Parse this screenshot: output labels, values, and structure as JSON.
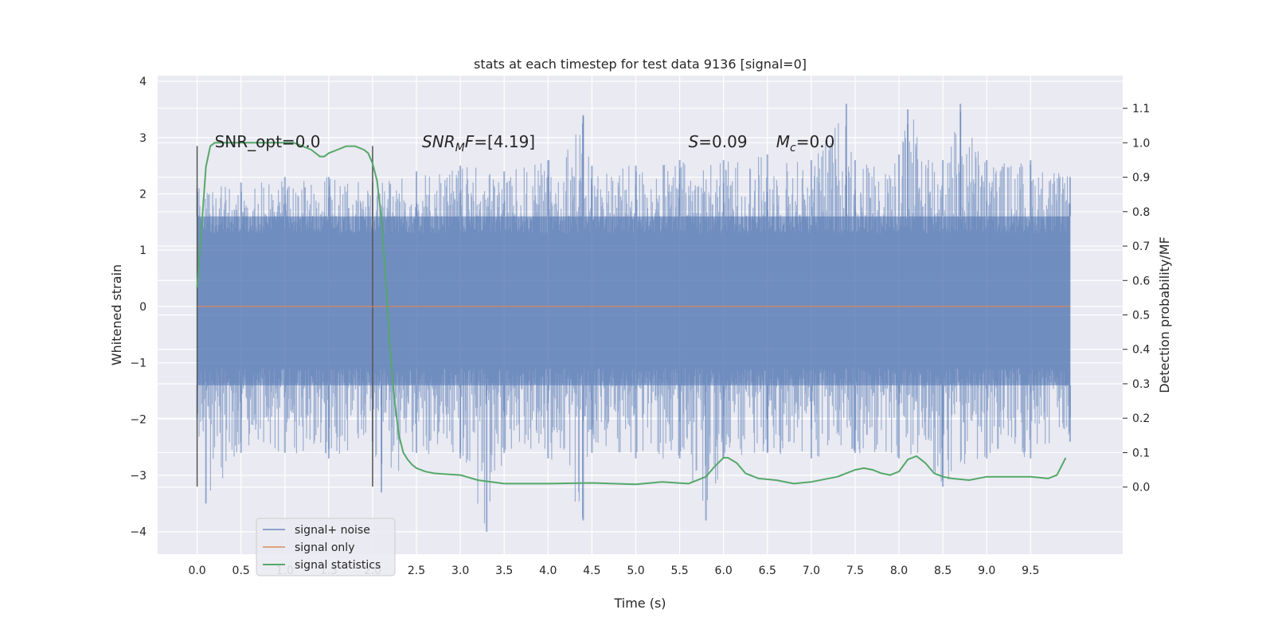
{
  "chart_data": {
    "type": "line",
    "title": "stats at each timestep for test data 9136 [signal=0]",
    "xlabel": "Time (s)",
    "ylabel": "Whitened strain",
    "y2label": "Detection probability/MF",
    "xlim": [
      -0.45,
      10.55
    ],
    "ylim": [
      -4.4,
      4.1
    ],
    "y2lim": [
      -0.195,
      1.195
    ],
    "x_ticks": [
      "0.0",
      "0.5",
      "1.0",
      "1.5",
      "2.0",
      "2.5",
      "3.0",
      "3.5",
      "4.0",
      "4.5",
      "5.0",
      "5.5",
      "6.0",
      "6.5",
      "7.0",
      "7.5",
      "8.0",
      "8.5",
      "9.0",
      "9.5"
    ],
    "y_ticks": [
      "4",
      "3",
      "2",
      "1",
      "0",
      "−1",
      "−2",
      "−3",
      "−4"
    ],
    "y2_ticks": [
      "1.1",
      "1.0",
      "0.9",
      "0.8",
      "0.7",
      "0.6",
      "0.5",
      "0.4",
      "0.3",
      "0.2",
      "0.1",
      "0.0"
    ],
    "grid": true,
    "legend_position": "lower-left",
    "background": "#eaeaf2",
    "series": [
      {
        "name": "signal+ noise",
        "color": "#4c72b0",
        "axis": "left",
        "x_range": [
          0.0,
          9.95
        ],
        "envelope_upper": [
          [
            0.0,
            2.1
          ],
          [
            0.5,
            2.2
          ],
          [
            1.0,
            2.3
          ],
          [
            1.5,
            2.3
          ],
          [
            2.0,
            2.2
          ],
          [
            2.5,
            2.4
          ],
          [
            3.0,
            2.5
          ],
          [
            3.5,
            2.4
          ],
          [
            4.0,
            2.6
          ],
          [
            4.4,
            3.4
          ],
          [
            4.5,
            2.5
          ],
          [
            5.0,
            2.5
          ],
          [
            5.5,
            2.6
          ],
          [
            6.0,
            2.6
          ],
          [
            6.5,
            2.7
          ],
          [
            7.0,
            2.6
          ],
          [
            7.4,
            3.6
          ],
          [
            7.5,
            2.6
          ],
          [
            8.0,
            2.7
          ],
          [
            8.1,
            3.5
          ],
          [
            8.5,
            2.6
          ],
          [
            8.7,
            3.6
          ],
          [
            9.0,
            2.6
          ],
          [
            9.5,
            2.6
          ],
          [
            9.95,
            2.3
          ]
        ],
        "envelope_lower": [
          [
            0.0,
            -2.0
          ],
          [
            0.1,
            -3.5
          ],
          [
            0.5,
            -2.6
          ],
          [
            1.0,
            -2.6
          ],
          [
            1.5,
            -2.7
          ],
          [
            2.0,
            -2.4
          ],
          [
            2.1,
            -3.3
          ],
          [
            2.5,
            -2.6
          ],
          [
            3.0,
            -2.7
          ],
          [
            3.3,
            -4.0
          ],
          [
            3.5,
            -2.6
          ],
          [
            4.0,
            -2.7
          ],
          [
            4.4,
            -3.8
          ],
          [
            4.5,
            -2.6
          ],
          [
            5.0,
            -2.7
          ],
          [
            5.5,
            -2.7
          ],
          [
            5.8,
            -3.8
          ],
          [
            6.0,
            -2.7
          ],
          [
            6.5,
            -2.6
          ],
          [
            7.0,
            -2.7
          ],
          [
            7.5,
            -2.6
          ],
          [
            8.0,
            -2.7
          ],
          [
            8.5,
            -3.2
          ],
          [
            9.0,
            -2.7
          ],
          [
            9.5,
            -2.7
          ],
          [
            9.95,
            -2.4
          ]
        ],
        "band_typical": [
          -1.4,
          1.6
        ]
      },
      {
        "name": "signal only",
        "color": "#dd8452",
        "axis": "left",
        "x": [
          0.0,
          9.95
        ],
        "values": [
          0,
          0
        ]
      },
      {
        "name": "signal statistics",
        "color": "#55a868",
        "axis": "right",
        "x": [
          0.0,
          0.05,
          0.1,
          0.15,
          0.2,
          0.3,
          0.5,
          0.8,
          1.0,
          1.1,
          1.2,
          1.3,
          1.4,
          1.45,
          1.5,
          1.6,
          1.7,
          1.8,
          1.9,
          1.95,
          2.0,
          2.05,
          2.1,
          2.15,
          2.2,
          2.25,
          2.3,
          2.35,
          2.4,
          2.45,
          2.5,
          2.6,
          2.7,
          2.8,
          3.0,
          3.2,
          3.5,
          4.0,
          4.5,
          5.0,
          5.3,
          5.6,
          5.8,
          5.9,
          6.0,
          6.05,
          6.15,
          6.25,
          6.4,
          6.6,
          6.8,
          7.0,
          7.3,
          7.5,
          7.6,
          7.7,
          7.8,
          7.9,
          8.0,
          8.1,
          8.2,
          8.3,
          8.4,
          8.5,
          8.6,
          8.8,
          9.0,
          9.2,
          9.5,
          9.7,
          9.8,
          9.9
        ],
        "values": [
          0.58,
          0.75,
          0.93,
          0.99,
          1.0,
          1.0,
          1.0,
          1.0,
          1.0,
          1.0,
          0.99,
          0.98,
          0.96,
          0.96,
          0.97,
          0.98,
          0.99,
          0.99,
          0.98,
          0.97,
          0.94,
          0.89,
          0.78,
          0.6,
          0.4,
          0.25,
          0.15,
          0.1,
          0.08,
          0.065,
          0.055,
          0.045,
          0.04,
          0.038,
          0.035,
          0.02,
          0.01,
          0.01,
          0.012,
          0.008,
          0.015,
          0.01,
          0.03,
          0.06,
          0.085,
          0.085,
          0.07,
          0.04,
          0.025,
          0.02,
          0.01,
          0.015,
          0.03,
          0.05,
          0.055,
          0.05,
          0.04,
          0.035,
          0.045,
          0.08,
          0.09,
          0.07,
          0.04,
          0.03,
          0.025,
          0.02,
          0.03,
          0.03,
          0.03,
          0.025,
          0.035,
          0.085
        ]
      }
    ],
    "vlines": [
      0.0,
      2.0
    ],
    "vline_color": "#555555",
    "annotations": [
      {
        "id": "snr_opt",
        "text": "SNR_opt=0.0",
        "x": 0.2,
        "y": 2.8
      },
      {
        "id": "snr_mf",
        "text_main": "SNR",
        "text_sub": "M",
        "text_rest": "F=[4.19]",
        "x": 2.6,
        "y": 2.8
      },
      {
        "id": "s_stat",
        "text_main": "S",
        "text_rest": "=0.09",
        "x": 5.6,
        "y": 2.8
      },
      {
        "id": "mc",
        "text_main": "M",
        "text_sub": "c",
        "text_rest": "=0.0",
        "x": 6.6,
        "y": 2.8
      }
    ],
    "legend": [
      {
        "label": "signal+ noise",
        "color": "#4c72b0"
      },
      {
        "label": "signal only",
        "color": "#dd8452"
      },
      {
        "label": "signal statistics",
        "color": "#55a868"
      }
    ]
  }
}
